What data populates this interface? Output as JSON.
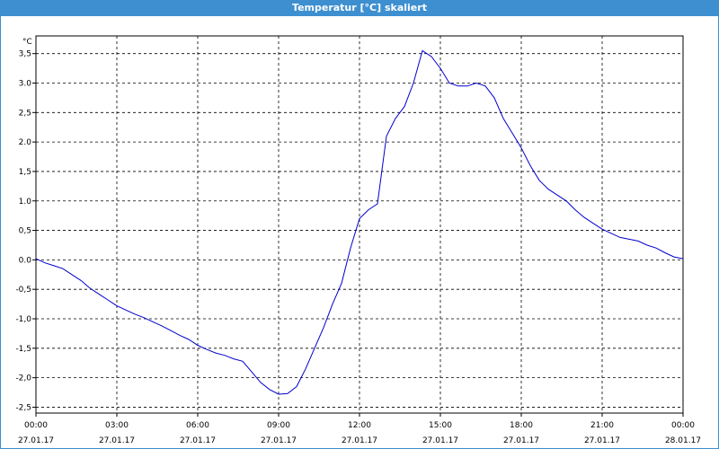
{
  "window": {
    "title": "Temperatur [°C] skaliert"
  },
  "chart_data": {
    "type": "line",
    "title": "Temperatur [°C] skaliert",
    "ylabel": "°C",
    "xlabel": "",
    "ylim": [
      -2.6,
      3.8
    ],
    "xlim": [
      "2017-01-27 00:00",
      "2017-01-28 00:00"
    ],
    "grid": true,
    "line_color": "#0000cc",
    "y_ticks": [
      "3,5",
      "3.0",
      "2,5",
      "2.0",
      "1,5",
      "1.0",
      "0,5",
      "0.0",
      "-0,5",
      "-1,0",
      "-1,5",
      "-2,0",
      "-2,5"
    ],
    "y_tick_values": [
      3.5,
      3.0,
      2.5,
      2.0,
      1.5,
      1.0,
      0.5,
      0.0,
      -0.5,
      -1.0,
      -1.5,
      -2.0,
      -2.5
    ],
    "x_ticks": [
      {
        "time": "00:00",
        "date": "27.01.17"
      },
      {
        "time": "03:00",
        "date": "27.01.17"
      },
      {
        "time": "06:00",
        "date": "27.01.17"
      },
      {
        "time": "09:00",
        "date": "27.01.17"
      },
      {
        "time": "12:00",
        "date": "27.01.17"
      },
      {
        "time": "15:00",
        "date": "27.01.17"
      },
      {
        "time": "18:00",
        "date": "27.01.17"
      },
      {
        "time": "21:00",
        "date": "27.01.17"
      },
      {
        "time": "00:00",
        "date": "28.01.17"
      }
    ],
    "series": [
      {
        "x": [
          "00:00",
          "00:20",
          "00:40",
          "01:00",
          "01:20",
          "01:40",
          "02:00",
          "02:20",
          "02:40",
          "03:00",
          "03:20",
          "03:40",
          "04:00",
          "04:20",
          "04:40",
          "05:00",
          "05:20",
          "05:40",
          "06:00",
          "06:20",
          "06:40",
          "07:00",
          "07:20",
          "07:40",
          "08:00",
          "08:20",
          "08:40",
          "09:00",
          "09:20",
          "09:40",
          "10:00",
          "10:20",
          "10:40",
          "11:00",
          "11:20",
          "11:40",
          "12:00",
          "12:20",
          "12:40",
          "13:00",
          "13:20",
          "13:40",
          "14:00",
          "14:20",
          "14:40",
          "15:00",
          "15:20",
          "15:40",
          "16:00",
          "16:20",
          "16:40",
          "17:00",
          "17:20",
          "17:40",
          "18:00",
          "18:20",
          "18:40",
          "19:00",
          "19:20",
          "19:40",
          "20:00",
          "20:20",
          "20:40",
          "21:00",
          "21:20",
          "21:40",
          "22:00",
          "22:20",
          "22:40",
          "23:00",
          "23:20",
          "23:40",
          "24:00"
        ],
        "values": [
          0.02,
          -0.05,
          -0.1,
          -0.15,
          -0.25,
          -0.35,
          -0.48,
          -0.58,
          -0.68,
          -0.78,
          -0.85,
          -0.92,
          -0.98,
          -1.05,
          -1.12,
          -1.2,
          -1.28,
          -1.35,
          -1.45,
          -1.52,
          -1.58,
          -1.62,
          -1.68,
          -1.72,
          -1.9,
          -2.08,
          -2.2,
          -2.28,
          -2.27,
          -2.15,
          -1.85,
          -1.5,
          -1.15,
          -0.75,
          -0.4,
          0.2,
          0.7,
          0.85,
          0.95,
          2.1,
          2.4,
          2.6,
          3.0,
          3.55,
          3.45,
          3.25,
          3.0,
          2.95,
          2.95,
          3.0,
          2.95,
          2.75,
          2.4,
          2.15,
          1.9,
          1.6,
          1.35,
          1.2,
          1.1,
          1.0,
          0.85,
          0.72,
          0.62,
          0.52,
          0.45,
          0.38,
          0.35,
          0.32,
          0.25,
          0.2,
          0.12,
          0.05,
          0.02
        ]
      }
    ]
  }
}
